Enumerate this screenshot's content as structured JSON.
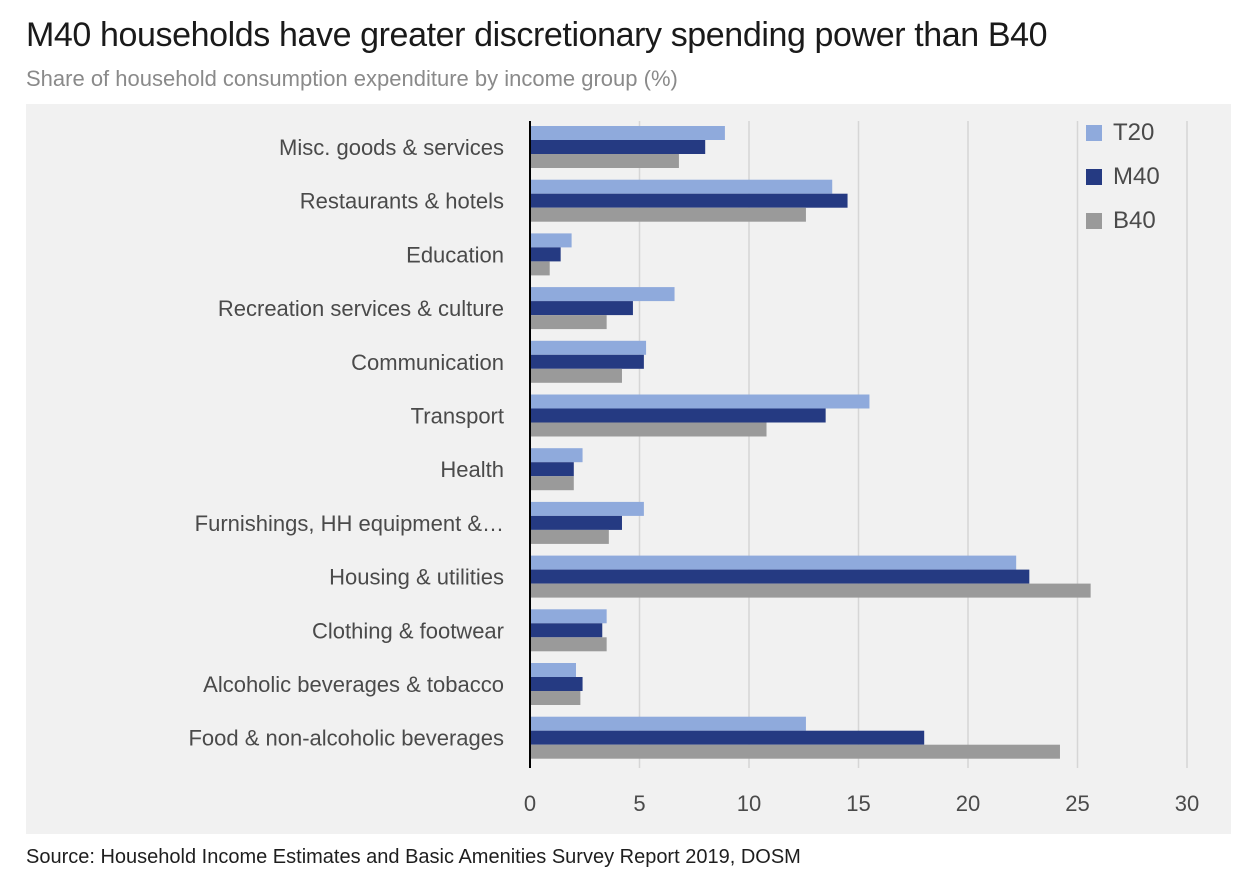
{
  "title": "M40 households have greater discretionary spending power than B40",
  "subtitle": "Share of household consumption expenditure by income group (%)",
  "source": "Source: Household Income Estimates and Basic Amenities Survey Report 2019, DOSM",
  "colors": {
    "T20": "#8faadc",
    "M40": "#253a82",
    "B40": "#9a9a9a",
    "grid": "#d6d6d6",
    "axis": "#000000",
    "label": "#4a4a4a"
  },
  "chart_data": {
    "type": "bar",
    "orientation": "horizontal",
    "title": "M40 households have greater discretionary spending power than B40",
    "subtitle": "Share of household consumption expenditure by income group (%)",
    "xlabel": "",
    "ylabel": "",
    "xlim": [
      0,
      30
    ],
    "xticks": [
      0,
      5,
      10,
      15,
      20,
      25,
      30
    ],
    "grid": "vertical",
    "legend": "top-right",
    "categories": [
      "Misc. goods & services",
      "Restaurants & hotels",
      "Education",
      "Recreation services & culture",
      "Communication",
      "Transport",
      "Health",
      "Furnishings, HH equipment &…",
      "Housing & utilities",
      "Clothing & footwear",
      "Alcoholic beverages & tobacco",
      "Food & non-alcoholic beverages"
    ],
    "series": [
      {
        "name": "T20",
        "color": "#8faadc",
        "values": [
          8.9,
          13.8,
          1.9,
          6.6,
          5.3,
          15.5,
          2.4,
          5.2,
          22.2,
          3.5,
          2.1,
          12.6
        ]
      },
      {
        "name": "M40",
        "color": "#253a82",
        "values": [
          8.0,
          14.5,
          1.4,
          4.7,
          5.2,
          13.5,
          2.0,
          4.2,
          22.8,
          3.3,
          2.4,
          18.0
        ]
      },
      {
        "name": "B40",
        "color": "#9a9a9a",
        "values": [
          6.8,
          12.6,
          0.9,
          3.5,
          4.2,
          10.8,
          2.0,
          3.6,
          25.6,
          3.5,
          2.3,
          24.2
        ]
      }
    ]
  }
}
